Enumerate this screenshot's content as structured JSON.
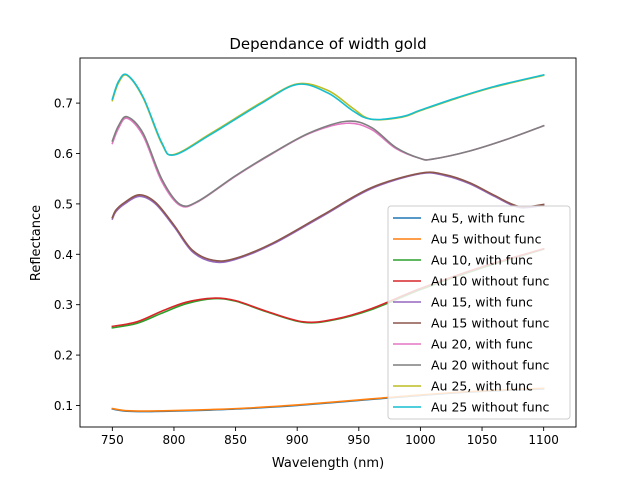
{
  "chart_data": {
    "type": "line",
    "title": "Dependance of width gold",
    "xlabel": "Wavelength (nm)",
    "ylabel": "Reflectance",
    "xlim": [
      723.75,
      1126.25
    ],
    "ylim": [
      0.0573,
      0.7895
    ],
    "xticks": [
      750,
      800,
      850,
      900,
      950,
      1000,
      1050,
      1100
    ],
    "yticks": [
      0.1,
      0.2,
      0.3,
      0.4,
      0.5,
      0.6,
      0.7
    ],
    "xtick_labels": [
      "750",
      "800",
      "850",
      "900",
      "950",
      "1000",
      "1050",
      "1100"
    ],
    "ytick_labels": [
      "0.1",
      "0.2",
      "0.3",
      "0.4",
      "0.5",
      "0.6",
      "0.7"
    ],
    "grid": false,
    "legend_position": "lower right",
    "series": [
      {
        "name": "Au 5, with func",
        "color": "#1f77b4",
        "x": [
          750,
          760,
          775,
          800,
          830,
          860,
          900,
          950,
          1000,
          1050,
          1100
        ],
        "y": [
          0.093,
          0.089,
          0.088,
          0.089,
          0.091,
          0.094,
          0.1,
          0.11,
          0.12,
          0.128,
          0.133
        ]
      },
      {
        "name": "Au 5 without func",
        "color": "#ff7f0e",
        "x": [
          750,
          760,
          775,
          800,
          830,
          860,
          900,
          950,
          1000,
          1050,
          1100
        ],
        "y": [
          0.094,
          0.09,
          0.089,
          0.09,
          0.092,
          0.095,
          0.101,
          0.111,
          0.121,
          0.129,
          0.134
        ]
      },
      {
        "name": "Au 10, with func",
        "color": "#2ca02c",
        "x": [
          750,
          770,
          790,
          810,
          832,
          850,
          875,
          905,
          930,
          960,
          1000,
          1050,
          1100
        ],
        "y": [
          0.254,
          0.263,
          0.283,
          0.302,
          0.312,
          0.307,
          0.286,
          0.265,
          0.27,
          0.29,
          0.33,
          0.373,
          0.41
        ]
      },
      {
        "name": "Au 10 without func",
        "color": "#d62728",
        "x": [
          750,
          770,
          790,
          810,
          832,
          850,
          875,
          905,
          930,
          960,
          1000,
          1050,
          1100
        ],
        "y": [
          0.257,
          0.266,
          0.287,
          0.305,
          0.313,
          0.308,
          0.287,
          0.266,
          0.271,
          0.292,
          0.332,
          0.375,
          0.411
        ]
      },
      {
        "name": "Au 15, with func",
        "color": "#9467bd",
        "x": [
          750,
          753,
          760,
          772,
          785,
          800,
          815,
          832,
          850,
          880,
          920,
          960,
          1000,
          1020,
          1040,
          1060,
          1080,
          1100
        ],
        "y": [
          0.47,
          0.485,
          0.5,
          0.515,
          0.5,
          0.455,
          0.405,
          0.385,
          0.39,
          0.42,
          0.475,
          0.53,
          0.56,
          0.556,
          0.54,
          0.515,
          0.493,
          0.497
        ]
      },
      {
        "name": "Au 15 without func",
        "color": "#8c564b",
        "x": [
          750,
          753,
          760,
          772,
          785,
          800,
          815,
          832,
          850,
          880,
          920,
          960,
          1000,
          1020,
          1040,
          1060,
          1080,
          1100
        ],
        "y": [
          0.473,
          0.488,
          0.503,
          0.518,
          0.503,
          0.458,
          0.408,
          0.388,
          0.392,
          0.422,
          0.477,
          0.532,
          0.561,
          0.558,
          0.542,
          0.517,
          0.495,
          0.499
        ]
      },
      {
        "name": "Au 20, with func",
        "color": "#e377c2",
        "x": [
          750,
          755,
          762,
          775,
          790,
          805,
          820,
          850,
          880,
          910,
          940,
          960,
          980,
          1000,
          1010,
          1040,
          1070,
          1100
        ],
        "y": [
          0.62,
          0.65,
          0.67,
          0.635,
          0.545,
          0.497,
          0.505,
          0.555,
          0.6,
          0.64,
          0.66,
          0.648,
          0.61,
          0.59,
          0.589,
          0.605,
          0.628,
          0.655
        ]
      },
      {
        "name": "Au 20 without func",
        "color": "#7f7f7f",
        "x": [
          750,
          755,
          762,
          775,
          790,
          805,
          820,
          850,
          880,
          910,
          940,
          960,
          980,
          1000,
          1010,
          1040,
          1070,
          1100
        ],
        "y": [
          0.625,
          0.655,
          0.673,
          0.64,
          0.55,
          0.499,
          0.506,
          0.556,
          0.601,
          0.641,
          0.664,
          0.652,
          0.612,
          0.59,
          0.589,
          0.605,
          0.628,
          0.655
        ]
      },
      {
        "name": "Au 25, with func",
        "color": "#bcbd22",
        "x": [
          750,
          755,
          762,
          775,
          790,
          800,
          830,
          870,
          900,
          925,
          945,
          960,
          985,
          1000,
          1030,
          1060,
          1100
        ],
        "y": [
          0.705,
          0.74,
          0.755,
          0.71,
          0.62,
          0.598,
          0.64,
          0.7,
          0.738,
          0.725,
          0.69,
          0.668,
          0.672,
          0.685,
          0.71,
          0.732,
          0.755
        ]
      },
      {
        "name": "Au 25 without func",
        "color": "#17becf",
        "x": [
          750,
          755,
          762,
          775,
          790,
          800,
          830,
          870,
          900,
          925,
          945,
          960,
          985,
          1000,
          1030,
          1060,
          1100
        ],
        "y": [
          0.708,
          0.743,
          0.756,
          0.712,
          0.622,
          0.597,
          0.638,
          0.698,
          0.737,
          0.72,
          0.685,
          0.668,
          0.673,
          0.686,
          0.711,
          0.733,
          0.756
        ]
      }
    ]
  }
}
